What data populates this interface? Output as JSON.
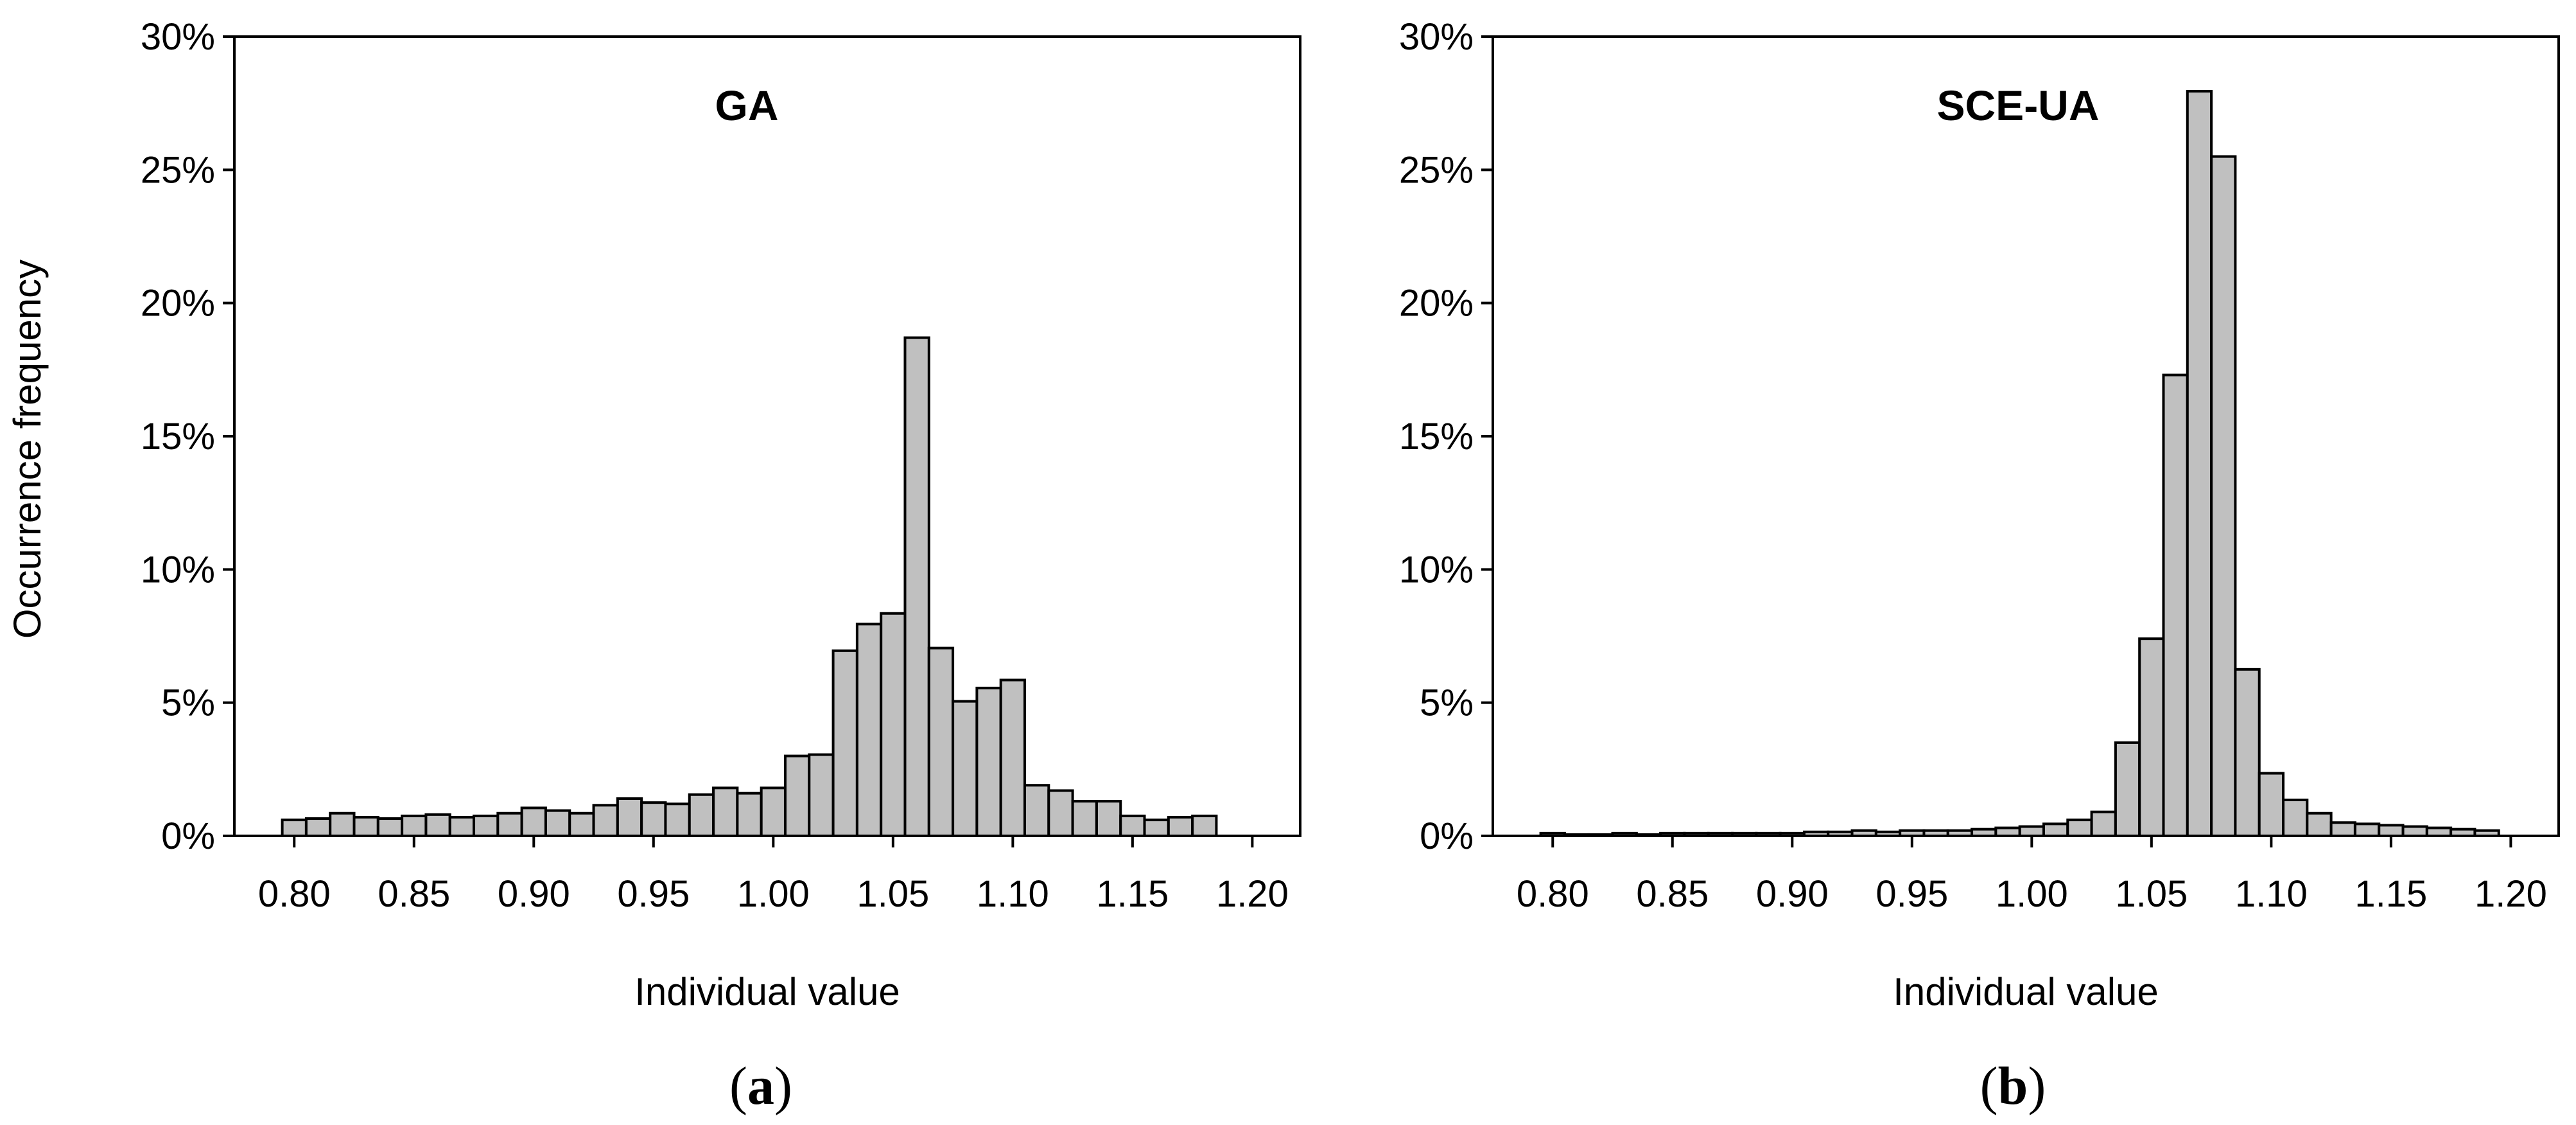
{
  "figure": {
    "bar_fill": "#c0c0c0",
    "bar_stroke": "#000000",
    "panels": [
      {
        "letter": "a",
        "paren_open": "(",
        "paren_close": ")"
      },
      {
        "letter": "b",
        "paren_open": "(",
        "paren_close": ")"
      }
    ]
  },
  "chart_data": [
    {
      "type": "bar",
      "title": "GA",
      "xlabel": "Individual value",
      "ylabel": "Occurrence frequency",
      "ylim": [
        0,
        30
      ],
      "xlim": [
        0.775,
        1.22
      ],
      "y_ticks": [
        "0%",
        "5%",
        "10%",
        "15%",
        "20%",
        "25%",
        "30%"
      ],
      "x_ticks": [
        "0.80",
        "0.85",
        "0.90",
        "0.95",
        "1.00",
        "1.05",
        "1.10",
        "1.15",
        "1.20"
      ],
      "grid": false,
      "bin_width": 0.01,
      "bin_start": 0.8,
      "values": [
        0.6,
        0.65,
        0.85,
        0.7,
        0.65,
        0.75,
        0.8,
        0.7,
        0.75,
        0.85,
        1.05,
        0.95,
        0.85,
        1.15,
        1.4,
        1.25,
        1.2,
        1.55,
        1.8,
        1.6,
        1.8,
        3.0,
        3.05,
        6.95,
        7.95,
        8.35,
        18.7,
        7.05,
        5.05,
        5.55,
        5.85,
        1.9,
        1.7,
        1.3,
        1.3,
        0.75,
        0.6,
        0.7,
        0.75
      ]
    },
    {
      "type": "bar",
      "title": "SCE-UA",
      "xlabel": "Individual value",
      "ylabel": "",
      "ylim": [
        0,
        30
      ],
      "xlim": [
        0.775,
        1.22
      ],
      "y_ticks": [
        "0%",
        "5%",
        "10%",
        "15%",
        "20%",
        "25%",
        "30%"
      ],
      "x_ticks": [
        "0.80",
        "0.85",
        "0.90",
        "0.95",
        "1.00",
        "1.05",
        "1.10",
        "1.15",
        "1.20"
      ],
      "grid": false,
      "bin_width": 0.01,
      "bin_start": 0.8,
      "values": [
        0.1,
        0.05,
        0.05,
        0.1,
        0.05,
        0.1,
        0.1,
        0.1,
        0.1,
        0.1,
        0.1,
        0.15,
        0.15,
        0.2,
        0.15,
        0.2,
        0.2,
        0.2,
        0.25,
        0.3,
        0.35,
        0.45,
        0.6,
        0.9,
        3.5,
        7.4,
        17.3,
        27.95,
        25.5,
        6.25,
        2.35,
        1.35,
        0.85,
        0.5,
        0.45,
        0.4,
        0.35,
        0.3,
        0.25,
        0.2
      ]
    }
  ]
}
